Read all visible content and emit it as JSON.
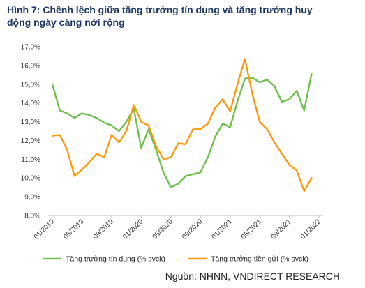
{
  "title_line1": "Hình 7: Chênh lệch giữa tăng trưởng tín dụng và tăng trưởng huy",
  "title_line2": "động ngày càng nới rộng",
  "source": "Nguồn: NHNN, VNDIRECT RESEARCH",
  "chart_data": {
    "type": "line",
    "title": "Hình 7: Chênh lệch giữa tăng trưởng tín dụng và tăng trưởng huy động ngày càng nới rộng",
    "x_start": "01/2019",
    "x_end": "01/2022",
    "x_tick_labels": [
      "01/2019",
      "05/2019",
      "09/2019",
      "01/2020",
      "05/2020",
      "09/2020",
      "01/2021",
      "05/2021",
      "09/2021",
      "01/2022"
    ],
    "y_tick_labels": [
      "8,0%",
      "9,0%",
      "10,0%",
      "11,0%",
      "12,0%",
      "13,0%",
      "14,0%",
      "15,0%",
      "16,0%",
      "17,0%"
    ],
    "ylim": [
      8.0,
      17.0
    ],
    "ylabel": "",
    "xlabel": "",
    "grid": false,
    "legend_position": "bottom",
    "series": [
      {
        "name": "Tăng trưởng tín dụng (% svck)",
        "color": "#70c050",
        "points": [
          [
            "01/2019",
            15.0
          ],
          [
            "02/2019",
            13.6
          ],
          [
            "03/2019",
            13.45
          ],
          [
            "04/2019",
            13.2
          ],
          [
            "05/2019",
            13.45
          ],
          [
            "06/2019",
            13.35
          ],
          [
            "07/2019",
            13.2
          ],
          [
            "08/2019",
            12.95
          ],
          [
            "09/2019",
            12.8
          ],
          [
            "10/2019",
            12.5
          ],
          [
            "11/2019",
            13.0
          ],
          [
            "12/2019",
            13.7
          ],
          [
            "01/2020",
            11.6
          ],
          [
            "02/2020",
            12.6
          ],
          [
            "03/2020",
            11.5
          ],
          [
            "04/2020",
            10.3
          ],
          [
            "05/2020",
            9.5
          ],
          [
            "06/2020",
            9.7
          ],
          [
            "07/2020",
            10.1
          ],
          [
            "08/2020",
            10.2
          ],
          [
            "09/2020",
            10.3
          ],
          [
            "10/2020",
            11.1
          ],
          [
            "11/2020",
            12.2
          ],
          [
            "12/2020",
            12.9
          ],
          [
            "01/2021",
            12.7
          ],
          [
            "02/2021",
            14.1
          ],
          [
            "03/2021",
            15.3
          ],
          [
            "04/2021",
            15.35
          ],
          [
            "05/2021",
            15.1
          ],
          [
            "06/2021",
            15.25
          ],
          [
            "07/2021",
            14.9
          ],
          [
            "08/2021",
            14.05
          ],
          [
            "09/2021",
            14.2
          ],
          [
            "10/2021",
            14.65
          ],
          [
            "11/2021",
            13.6
          ],
          [
            "12/2021",
            15.55
          ]
        ]
      },
      {
        "name": "Tăng trưởng tiền gửi (% svck)",
        "color": "#ff9a10",
        "points": [
          [
            "01/2019",
            12.25
          ],
          [
            "02/2019",
            12.3
          ],
          [
            "03/2019",
            11.5
          ],
          [
            "04/2019",
            10.1
          ],
          [
            "05/2019",
            10.45
          ],
          [
            "06/2019",
            10.85
          ],
          [
            "07/2019",
            11.3
          ],
          [
            "08/2019",
            11.1
          ],
          [
            "09/2019",
            12.3
          ],
          [
            "10/2019",
            11.9
          ],
          [
            "11/2019",
            12.5
          ],
          [
            "12/2019",
            13.9
          ],
          [
            "01/2020",
            13.0
          ],
          [
            "02/2020",
            12.8
          ],
          [
            "03/2020",
            11.7
          ],
          [
            "04/2020",
            11.0
          ],
          [
            "05/2020",
            11.1
          ],
          [
            "06/2020",
            11.85
          ],
          [
            "07/2020",
            11.8
          ],
          [
            "08/2020",
            12.6
          ],
          [
            "09/2020",
            12.6
          ],
          [
            "10/2020",
            12.9
          ],
          [
            "11/2020",
            13.75
          ],
          [
            "12/2020",
            14.2
          ],
          [
            "01/2021",
            13.55
          ],
          [
            "02/2021",
            15.0
          ],
          [
            "03/2021",
            16.35
          ],
          [
            "04/2021",
            14.5
          ],
          [
            "05/2021",
            13.0
          ],
          [
            "06/2021",
            12.6
          ],
          [
            "07/2021",
            11.9
          ],
          [
            "08/2021",
            11.3
          ],
          [
            "09/2021",
            10.7
          ],
          [
            "10/2021",
            10.4
          ],
          [
            "11/2021",
            9.3
          ],
          [
            "12/2021",
            10.0
          ]
        ]
      }
    ]
  }
}
